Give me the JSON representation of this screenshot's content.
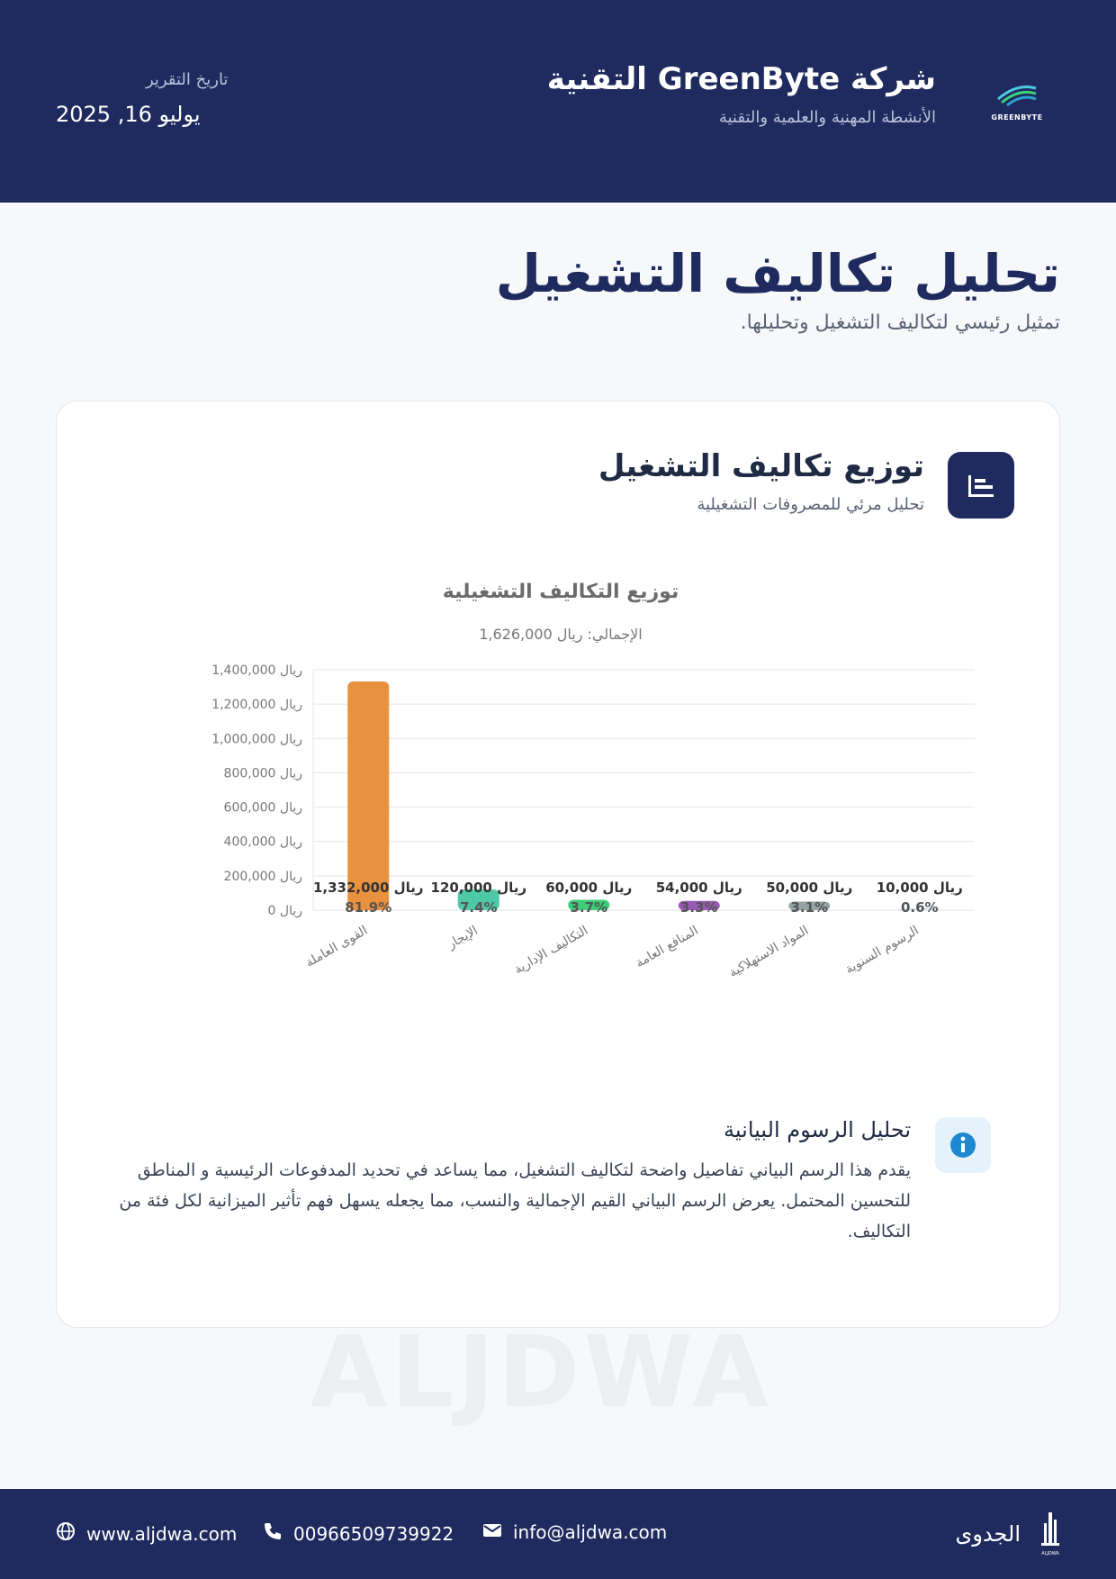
{
  "header": {
    "logo_text": "GREENBYTE",
    "company_name": "شركة GreenByte التقنية",
    "company_subtitle": "الأنشطة المهنية والعلمية والتقنية",
    "report_date_label": "تاريخ التقرير",
    "report_date_value": "يوليو 16, 2025"
  },
  "page": {
    "title": "تحليل تكاليف التشغيل",
    "subtitle": "تمثيل رئيسي لتكاليف التشغيل وتحليلها."
  },
  "card": {
    "title": "توزيع تكاليف التشغيل",
    "subtitle": "تحليل مرئي للمصروفات التشغيلية",
    "icon": "bar-chart-icon"
  },
  "chart_data": {
    "type": "bar",
    "title": "توزيع التكاليف التشغيلية",
    "subtitle": "الإجمالي: ريال 1,626,000",
    "categories": [
      "القوى العاملة",
      "الإيجار",
      "التكاليف الإدارية",
      "المنافع العامة",
      "المواد الاستهلاكية",
      "الرسوم السنوية"
    ],
    "values": [
      1332000,
      120000,
      60000,
      54000,
      50000,
      10000
    ],
    "value_labels": [
      "ريال 1,332,000",
      "ريال 120,000",
      "ريال 60,000",
      "ريال 54,000",
      "ريال 50,000",
      "ريال 10,000"
    ],
    "percent_labels": [
      "81.9%",
      "7.4%",
      "3.7%",
      "3.3%",
      "3.1%",
      "0.6%"
    ],
    "colors": [
      "#e8913f",
      "#4ec9a6",
      "#3ccf7a",
      "#9b59b6",
      "#95a5a6",
      "#d6e6ef"
    ],
    "ylim": [
      0,
      1400000
    ],
    "yticks": [
      0,
      200000,
      400000,
      600000,
      800000,
      1000000,
      1200000,
      1400000
    ],
    "ytick_labels": [
      "ريال 0",
      "ريال 200,000",
      "ريال 400,000",
      "ريال 600,000",
      "ريال 800,000",
      "ريال 1,000,000",
      "ريال 1,200,000",
      "ريال 1,400,000"
    ],
    "grid": true
  },
  "info": {
    "title": "تحليل الرسوم البيانية",
    "body": "يقدم هذا الرسم البياني تفاصيل واضحة لتكاليف التشغيل، مما يساعد في تحديد المدفوعات الرئيسية و المناطق للتحسين المحتمل. يعرض الرسم البياني القيم الإجمالية والنسب، مما يجعله يسهل فهم تأثير الميزانية لكل فئة من التكاليف."
  },
  "watermark": "ALJDWA",
  "footer": {
    "website": "www.aljdwa.com",
    "phone": "00966509739922",
    "email": "info@aljdwa.com",
    "brand_name": "الجدوى",
    "brand_logo_text": "ALJDWA"
  }
}
